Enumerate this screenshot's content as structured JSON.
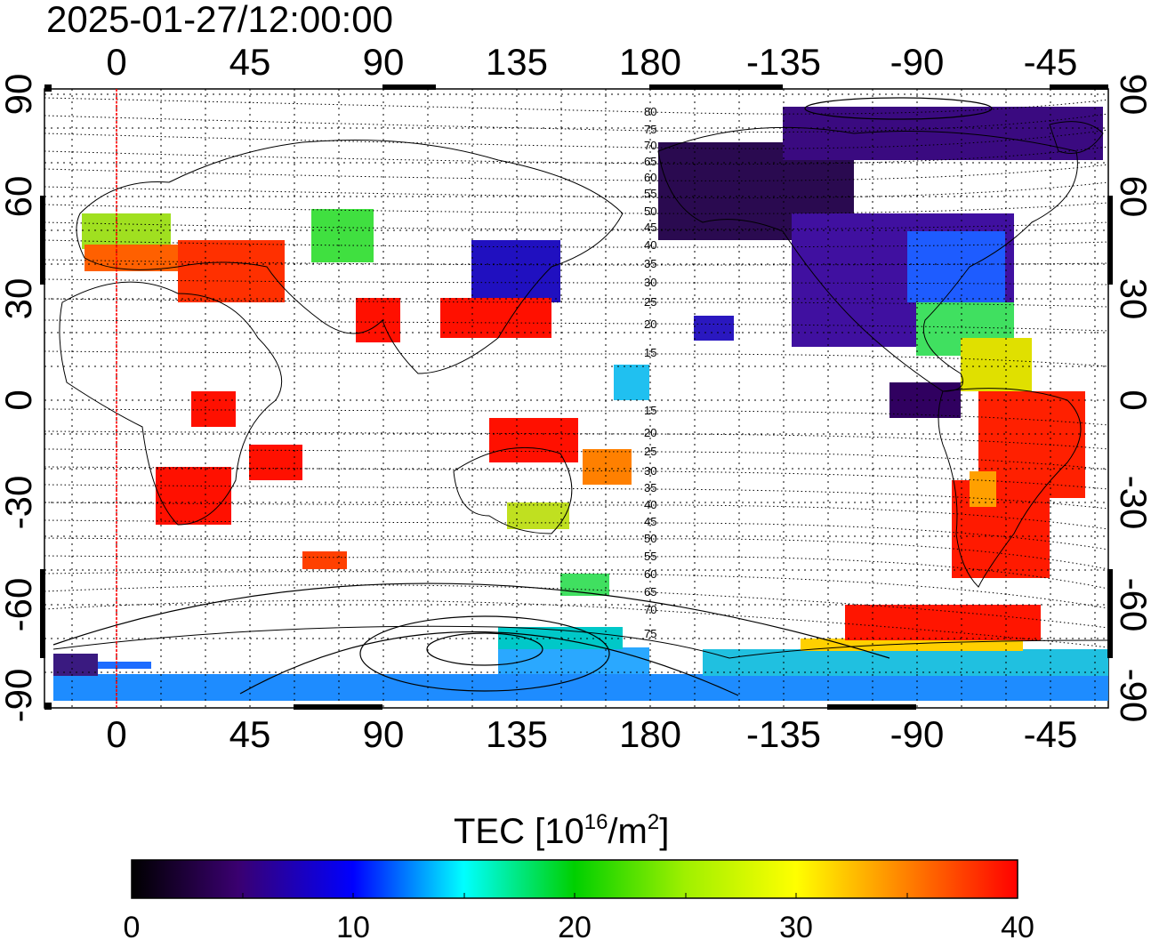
{
  "title": "2025-01-27/12:00:00",
  "top_lon_labels": [
    "0",
    "45",
    "90",
    "135",
    "180",
    "-135",
    "-90",
    "-45"
  ],
  "bottom_lon_labels": [
    "0",
    "45",
    "90",
    "135",
    "180",
    "-135",
    "-90",
    "-45"
  ],
  "left_lat_labels": [
    "90",
    "60",
    "30",
    "0",
    "-30",
    "-60",
    "-90"
  ],
  "right_lat_labels": [
    "90",
    "60",
    "30",
    "0",
    "-30",
    "-60",
    "-90"
  ],
  "contour_labels": [
    "80",
    "75",
    "70",
    "65",
    "60",
    "55",
    "50",
    "45",
    "40",
    "35",
    "30",
    "25",
    "20",
    "15",
    "15",
    "20",
    "25",
    "30",
    "35",
    "40",
    "45",
    "50",
    "55",
    "60",
    "65",
    "70",
    "75"
  ],
  "colorbar": {
    "title_prefix": "TEC  [10",
    "title_exp": "16",
    "title_mid": "/m",
    "title_exp2": "2",
    "title_suffix": "]",
    "ticks": [
      "0",
      "10",
      "20",
      "30",
      "40"
    ],
    "min": 0,
    "max": 40
  },
  "colors": {
    "marker_line": "#ff0000",
    "grid": "#000000"
  }
}
